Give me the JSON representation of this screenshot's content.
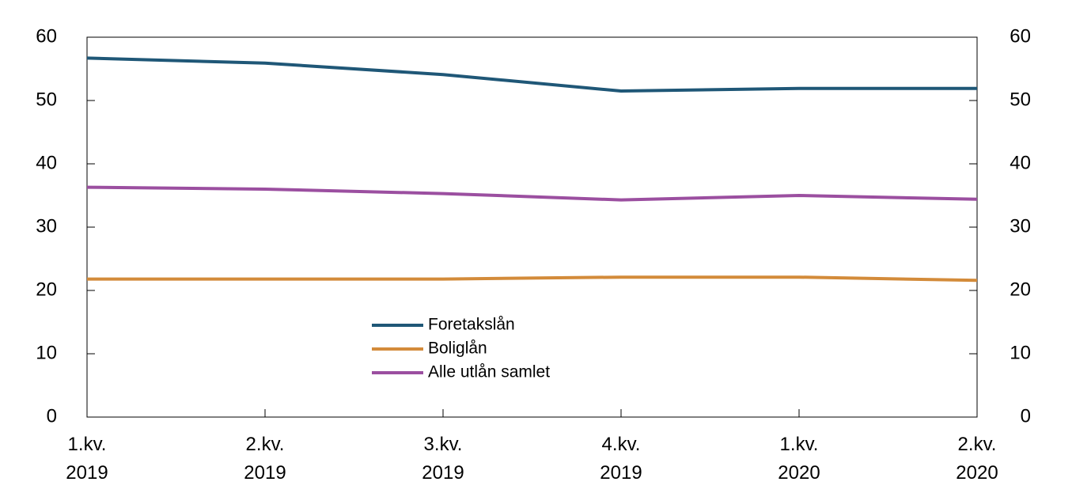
{
  "chart_data": {
    "type": "line",
    "categories": [
      "1.kv. 2019",
      "2.kv. 2019",
      "3.kv. 2019",
      "4.kv. 2019",
      "1.kv. 2020",
      "2.kv. 2020"
    ],
    "series": [
      {
        "name": "Foretakslån",
        "color": "#1f5777",
        "values": [
          56.7,
          55.9,
          54.1,
          51.5,
          51.9,
          51.9
        ]
      },
      {
        "name": "Boliglån",
        "color": "#d38b3a",
        "values": [
          21.8,
          21.8,
          21.8,
          22.1,
          22.1,
          21.6
        ]
      },
      {
        "name": "Alle utlån samlet",
        "color": "#9b4fa0",
        "values": [
          36.3,
          36.0,
          35.3,
          34.3,
          35.0,
          34.4
        ]
      }
    ],
    "ylim": [
      0,
      60
    ],
    "yticks": [
      0,
      10,
      20,
      30,
      40,
      50,
      60
    ],
    "y2lim": [
      0,
      60
    ],
    "y2ticks": [
      0,
      10,
      20,
      30,
      40,
      50,
      60
    ],
    "grid": false
  }
}
